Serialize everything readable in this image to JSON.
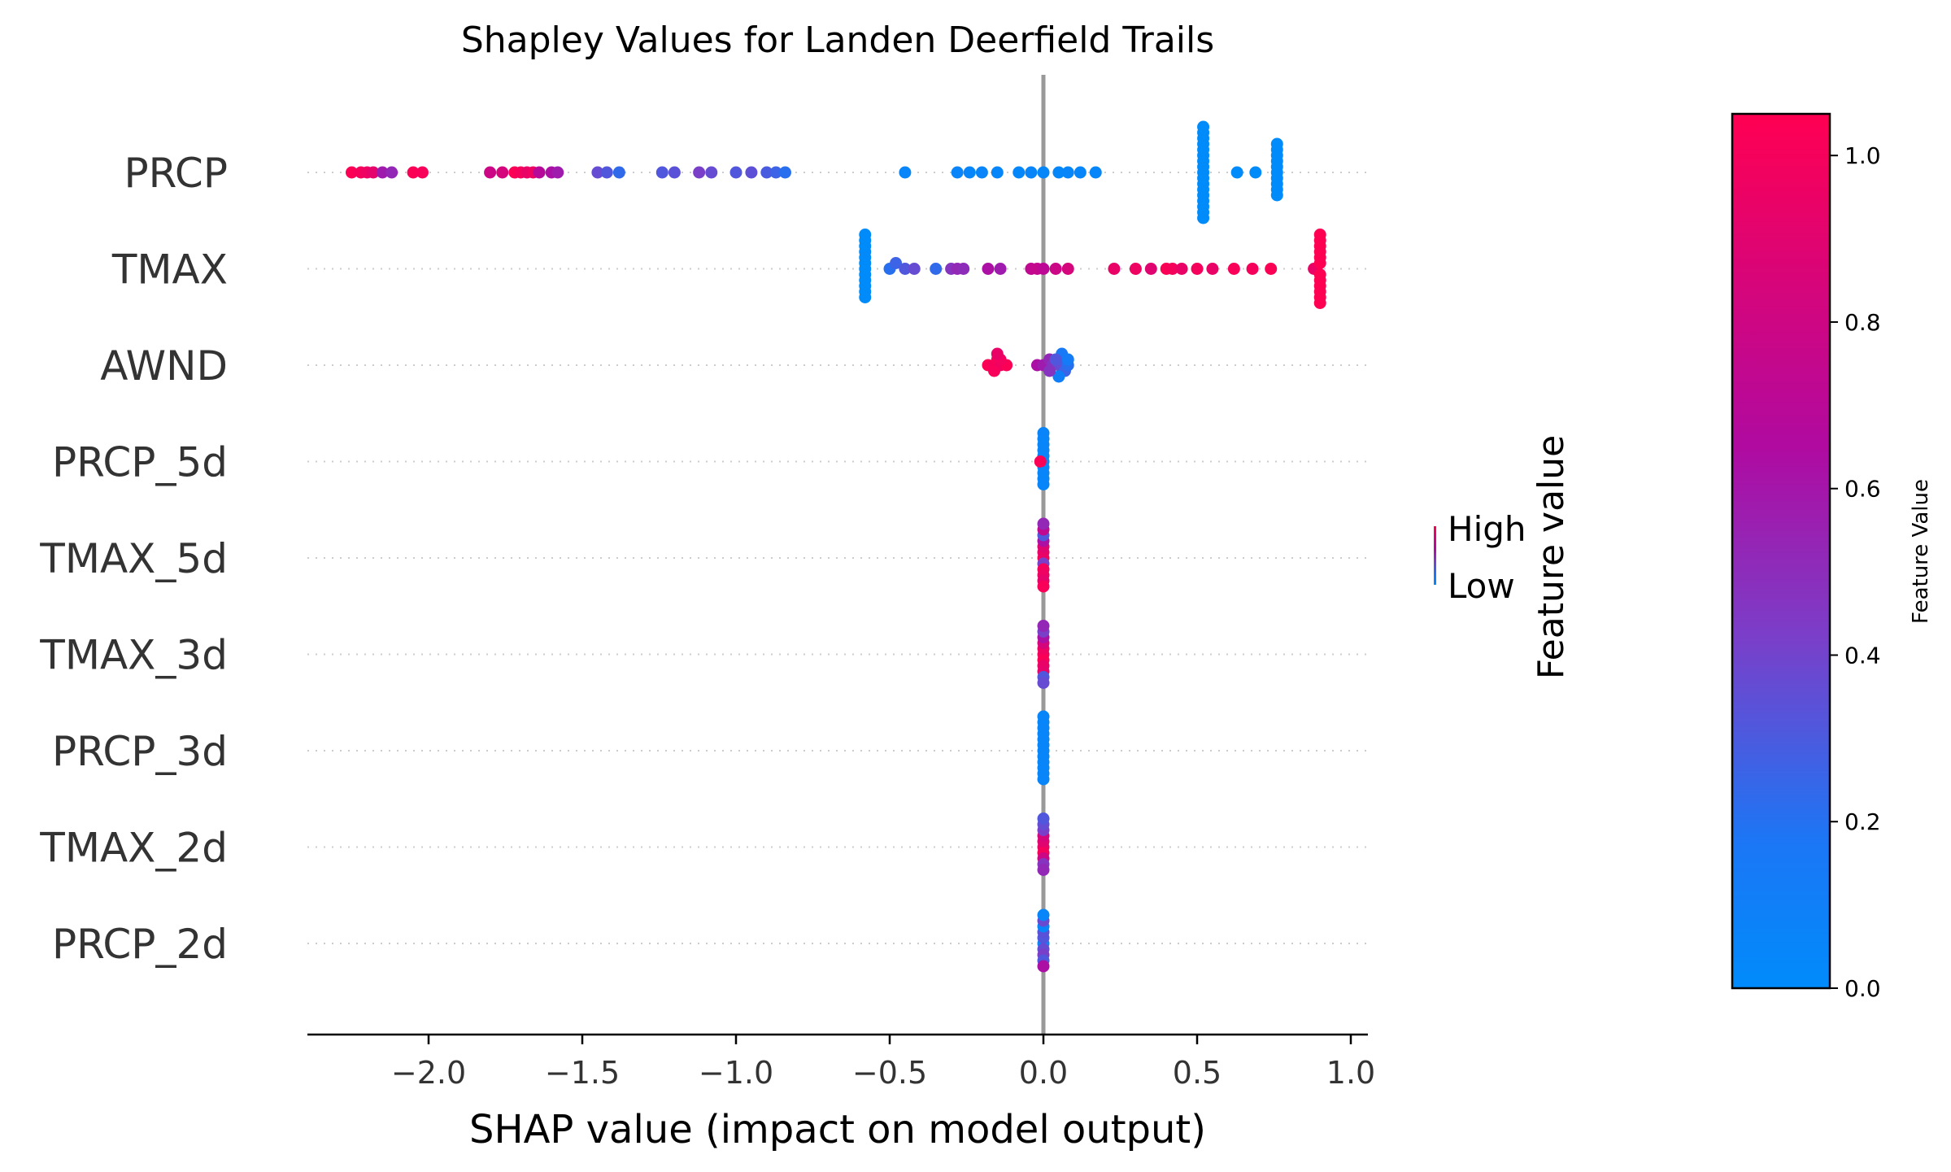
{
  "chart_data": {
    "type": "scatter",
    "title": "Shapley Values for Landen Deerfield Trails",
    "xlabel": "SHAP value (impact on model output)",
    "xlim": [
      -2.4,
      1.05
    ],
    "xticks": [
      -2.0,
      -1.5,
      -1.0,
      -0.5,
      0.0,
      0.5,
      1.0
    ],
    "xtick_labels": [
      "−2.0",
      "−1.5",
      "−1.0",
      "−0.5",
      "0.0",
      "0.5",
      "1.0"
    ],
    "zero_line": 0,
    "grid": "dotted horizontal lines per feature",
    "features": [
      {
        "name": "PRCP",
        "points": [
          [
            -2.25,
            0.98
          ],
          [
            -2.22,
            0.95
          ],
          [
            -2.2,
            0.92
          ],
          [
            -2.18,
            0.88
          ],
          [
            -2.15,
            0.55
          ],
          [
            -2.12,
            0.5
          ],
          [
            -2.05,
            0.98
          ],
          [
            -2.02,
            0.96
          ],
          [
            -1.8,
            0.75
          ],
          [
            -1.76,
            0.8
          ],
          [
            -1.72,
            0.98
          ],
          [
            -1.7,
            0.95
          ],
          [
            -1.68,
            0.9
          ],
          [
            -1.66,
            0.92
          ],
          [
            -1.64,
            0.65
          ],
          [
            -1.6,
            0.6
          ],
          [
            -1.58,
            0.55
          ],
          [
            -1.45,
            0.35
          ],
          [
            -1.42,
            0.3
          ],
          [
            -1.38,
            0.22
          ],
          [
            -1.24,
            0.3
          ],
          [
            -1.2,
            0.32
          ],
          [
            -1.12,
            0.4
          ],
          [
            -1.08,
            0.35
          ],
          [
            -1.0,
            0.3
          ],
          [
            -0.95,
            0.33
          ],
          [
            -0.9,
            0.28
          ],
          [
            -0.87,
            0.25
          ],
          [
            -0.84,
            0.2
          ],
          [
            -0.45,
            0.05
          ],
          [
            -0.28,
            0.06
          ],
          [
            -0.24,
            0.04
          ],
          [
            -0.2,
            0.05
          ],
          [
            -0.15,
            0.04
          ],
          [
            -0.08,
            0.03
          ],
          [
            -0.04,
            0.05
          ],
          [
            0.0,
            0.03
          ],
          [
            0.05,
            0.03
          ],
          [
            0.08,
            0.04
          ],
          [
            0.12,
            0.04
          ],
          [
            0.17,
            0.04
          ],
          [
            0.52,
            0.0
          ],
          [
            0.52,
            0.0
          ],
          [
            0.52,
            0.0
          ],
          [
            0.52,
            0.0
          ],
          [
            0.52,
            0.0
          ],
          [
            0.52,
            0.0
          ],
          [
            0.52,
            0.0
          ],
          [
            0.52,
            0.0
          ],
          [
            0.52,
            0.0
          ],
          [
            0.52,
            0.0
          ],
          [
            0.52,
            0.0
          ],
          [
            0.52,
            0.0
          ],
          [
            0.52,
            0.0
          ],
          [
            0.52,
            0.0
          ],
          [
            0.52,
            0.0
          ],
          [
            0.52,
            0.0
          ],
          [
            0.52,
            0.0
          ],
          [
            0.63,
            0.0
          ],
          [
            0.69,
            0.0
          ],
          [
            0.76,
            0.0
          ],
          [
            0.76,
            0.0
          ],
          [
            0.76,
            0.0
          ],
          [
            0.76,
            0.0
          ],
          [
            0.76,
            0.0
          ],
          [
            0.76,
            0.0
          ],
          [
            0.76,
            0.0
          ],
          [
            0.76,
            0.0
          ],
          [
            0.76,
            0.0
          ],
          [
            0.76,
            0.0
          ]
        ]
      },
      {
        "name": "TMAX",
        "points": [
          [
            -0.58,
            0.0
          ],
          [
            -0.58,
            0.0
          ],
          [
            -0.58,
            0.0
          ],
          [
            -0.58,
            0.0
          ],
          [
            -0.58,
            0.0
          ],
          [
            -0.58,
            0.02
          ],
          [
            -0.58,
            0.0
          ],
          [
            -0.58,
            0.0
          ],
          [
            -0.58,
            0.0
          ],
          [
            -0.58,
            0.0
          ],
          [
            -0.58,
            0.0
          ],
          [
            -0.58,
            0.0
          ],
          [
            -0.5,
            0.2
          ],
          [
            -0.48,
            0.25
          ],
          [
            -0.45,
            0.3
          ],
          [
            -0.42,
            0.35
          ],
          [
            -0.35,
            0.22
          ],
          [
            -0.3,
            0.45
          ],
          [
            -0.28,
            0.5
          ],
          [
            -0.26,
            0.48
          ],
          [
            -0.18,
            0.6
          ],
          [
            -0.14,
            0.55
          ],
          [
            -0.04,
            0.7
          ],
          [
            -0.02,
            0.72
          ],
          [
            0.0,
            0.68
          ],
          [
            0.04,
            0.75
          ],
          [
            0.08,
            0.8
          ],
          [
            0.23,
            0.9
          ],
          [
            0.3,
            0.92
          ],
          [
            0.35,
            0.85
          ],
          [
            0.4,
            0.98
          ],
          [
            0.42,
            0.95
          ],
          [
            0.45,
            0.9
          ],
          [
            0.5,
            0.95
          ],
          [
            0.55,
            0.9
          ],
          [
            0.62,
            0.97
          ],
          [
            0.68,
            0.95
          ],
          [
            0.74,
            0.98
          ],
          [
            0.88,
            0.9
          ],
          [
            0.9,
            1.0
          ],
          [
            0.9,
            1.0
          ],
          [
            0.9,
            1.0
          ],
          [
            0.9,
            1.0
          ],
          [
            0.9,
            1.0
          ],
          [
            0.9,
            1.0
          ],
          [
            0.9,
            1.0
          ],
          [
            0.9,
            1.0
          ],
          [
            0.9,
            1.0
          ],
          [
            0.9,
            1.0
          ],
          [
            0.9,
            1.0
          ],
          [
            0.9,
            1.0
          ]
        ]
      },
      {
        "name": "AWND",
        "points": [
          [
            -0.18,
            0.98
          ],
          [
            -0.16,
            0.95
          ],
          [
            -0.15,
            0.97
          ],
          [
            -0.14,
            0.92
          ],
          [
            -0.12,
            0.98
          ],
          [
            -0.16,
            0.96
          ],
          [
            -0.14,
            0.94
          ],
          [
            -0.15,
            0.9
          ],
          [
            -0.02,
            0.6
          ],
          [
            0.0,
            0.55
          ],
          [
            0.02,
            0.5
          ],
          [
            0.03,
            0.45
          ],
          [
            0.05,
            0.35
          ],
          [
            0.06,
            0.3
          ],
          [
            0.07,
            0.25
          ],
          [
            0.08,
            0.2
          ],
          [
            0.06,
            0.15
          ],
          [
            0.05,
            0.1
          ],
          [
            0.08,
            0.12
          ],
          [
            0.04,
            0.3
          ],
          [
            0.02,
            0.45
          ]
        ]
      },
      {
        "name": "PRCP_5d",
        "points": [
          [
            0.0,
            0.05
          ],
          [
            0.0,
            0.05
          ],
          [
            0.0,
            0.04
          ],
          [
            0.0,
            0.06
          ],
          [
            -0.01,
            0.98
          ],
          [
            0.0,
            0.05
          ],
          [
            0.0,
            0.05
          ],
          [
            0.0,
            0.04
          ],
          [
            0.0,
            0.05
          ],
          [
            0.0,
            0.05
          ],
          [
            0.0,
            0.06
          ]
        ]
      },
      {
        "name": "TMAX_5d",
        "points": [
          [
            0.0,
            0.98
          ],
          [
            0.0,
            0.9
          ],
          [
            0.0,
            0.4
          ],
          [
            0.0,
            0.85
          ],
          [
            0.0,
            0.95
          ],
          [
            0.0,
            0.6
          ],
          [
            0.0,
            0.92
          ],
          [
            0.0,
            0.3
          ],
          [
            0.0,
            0.88
          ],
          [
            0.0,
            0.7
          ],
          [
            0.0,
            0.97
          ],
          [
            0.0,
            0.5
          ]
        ]
      },
      {
        "name": "TMAX_3d",
        "points": [
          [
            0.0,
            0.95
          ],
          [
            0.0,
            0.92
          ],
          [
            0.0,
            0.98
          ],
          [
            0.0,
            0.8
          ],
          [
            0.0,
            0.9
          ],
          [
            0.0,
            0.6
          ],
          [
            0.0,
            0.88
          ],
          [
            0.0,
            0.4
          ],
          [
            0.0,
            0.3
          ],
          [
            0.0,
            0.5
          ],
          [
            0.0,
            0.35
          ]
        ]
      },
      {
        "name": "PRCP_3d",
        "points": [
          [
            0.0,
            0.05
          ],
          [
            0.0,
            0.05
          ],
          [
            0.0,
            0.05
          ],
          [
            0.0,
            0.05
          ],
          [
            0.0,
            0.05
          ],
          [
            0.0,
            0.05
          ],
          [
            0.0,
            0.05
          ],
          [
            0.0,
            0.05
          ],
          [
            0.0,
            0.05
          ],
          [
            0.0,
            0.05
          ],
          [
            0.0,
            0.05
          ],
          [
            0.0,
            0.05
          ]
        ]
      },
      {
        "name": "TMAX_2d",
        "points": [
          [
            0.0,
            0.9
          ],
          [
            0.0,
            0.85
          ],
          [
            0.0,
            0.95
          ],
          [
            0.0,
            0.8
          ],
          [
            0.0,
            0.75
          ],
          [
            0.0,
            0.4
          ],
          [
            0.0,
            0.45
          ],
          [
            0.0,
            0.35
          ],
          [
            0.0,
            0.5
          ],
          [
            0.0,
            0.3
          ]
        ]
      },
      {
        "name": "PRCP_2d",
        "points": [
          [
            0.0,
            0.05
          ],
          [
            0.0,
            0.3
          ],
          [
            0.0,
            0.35
          ],
          [
            0.0,
            0.32
          ],
          [
            0.0,
            0.4
          ],
          [
            0.0,
            0.05
          ],
          [
            0.0,
            0.3
          ],
          [
            0.0,
            0.36
          ],
          [
            0.0,
            0.6
          ],
          [
            0.0,
            0.05
          ]
        ]
      }
    ],
    "colorbar": {
      "label": "Feature Value",
      "range": [
        0.0,
        1.05
      ],
      "ticks": [
        0.0,
        0.2,
        0.4,
        0.6,
        0.8,
        1.0
      ],
      "tick_labels": [
        "0.0",
        "0.2",
        "0.4",
        "0.6",
        "0.8",
        "1.0"
      ],
      "colors": [
        "#008bfb",
        "#1c76f5",
        "#7a3fc9",
        "#b00aa0",
        "#ff0052"
      ]
    },
    "legend": {
      "title": "Feature value",
      "entries": [
        "High",
        "Low"
      ],
      "placement": "center-right"
    }
  }
}
